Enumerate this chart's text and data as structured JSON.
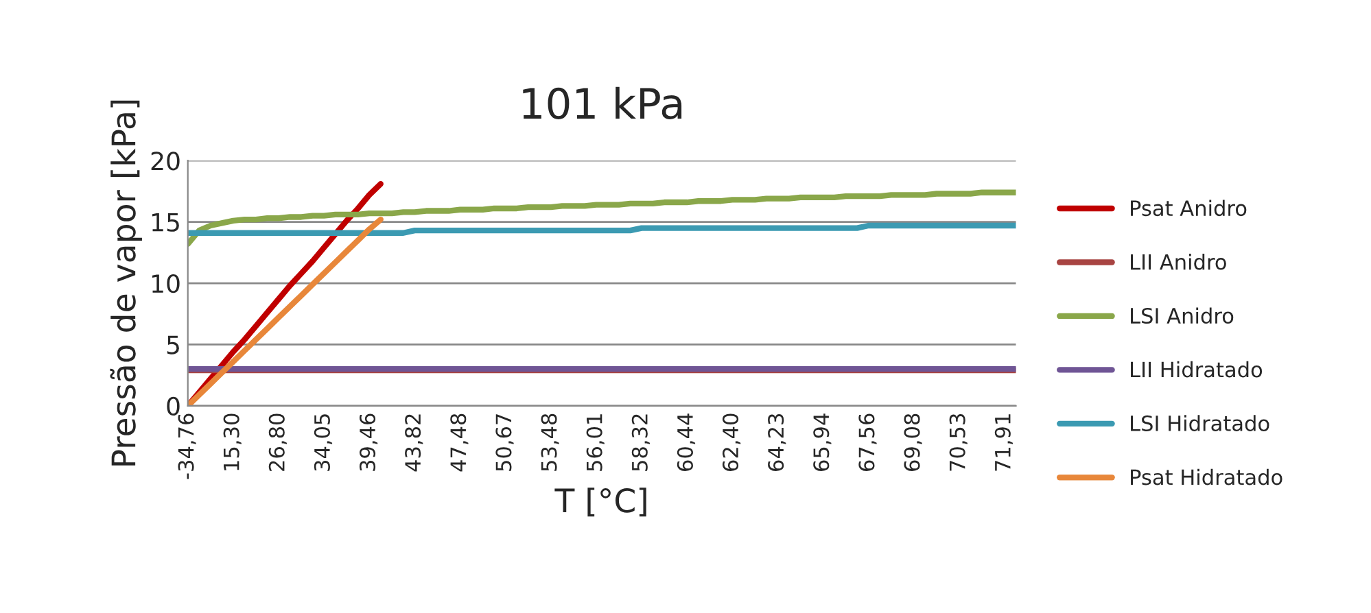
{
  "chart_data": {
    "type": "line",
    "title": "101 kPa",
    "xlabel": "T [°C]",
    "ylabel": "Pressão de vapor [kPa]",
    "categories": [
      "-34,76",
      null,
      null,
      null,
      "15,30",
      null,
      null,
      null,
      "26,80",
      null,
      null,
      null,
      "34,05",
      null,
      null,
      null,
      "39,46",
      null,
      null,
      null,
      "43,82",
      null,
      null,
      null,
      "47,48",
      null,
      null,
      null,
      "50,67",
      null,
      null,
      null,
      "53,48",
      null,
      null,
      null,
      "56,01",
      null,
      null,
      null,
      "58,32",
      null,
      null,
      null,
      "60,44",
      null,
      null,
      null,
      "62,40",
      null,
      null,
      null,
      "64,23",
      null,
      null,
      null,
      "65,94",
      null,
      null,
      null,
      "67,56",
      null,
      null,
      null,
      "69,08",
      null,
      null,
      null,
      "70,53",
      null,
      null,
      null,
      "71,91",
      null
    ],
    "series": [
      {
        "name": "Psat Anidro",
        "color": "#c00000",
        "values": [
          0,
          1.1,
          2.2,
          3.3,
          4.4,
          5.4,
          6.5,
          7.6,
          8.7,
          9.8,
          10.8,
          11.8,
          12.9,
          14.0,
          15.1,
          16.1,
          17.2,
          18.1,
          null,
          null,
          null,
          null,
          null,
          null,
          null,
          null,
          null,
          null,
          null,
          null,
          null,
          null,
          null,
          null,
          null,
          null,
          null,
          null,
          null,
          null,
          null,
          null,
          null,
          null,
          null,
          null,
          null,
          null,
          null,
          null,
          null,
          null,
          null,
          null,
          null,
          null,
          null,
          null,
          null,
          null,
          null,
          null,
          null,
          null,
          null,
          null,
          null,
          null,
          null,
          null,
          null,
          null,
          null,
          null
        ]
      },
      {
        "name": "LII Anidro",
        "color": "#a84442",
        "values": [
          2.9,
          2.9,
          2.9,
          2.9,
          2.9,
          2.9,
          2.9,
          2.9,
          2.9,
          2.9,
          2.9,
          2.9,
          2.9,
          2.9,
          2.9,
          2.9,
          2.9,
          2.9,
          2.9,
          2.9,
          2.9,
          2.9,
          2.9,
          2.9,
          2.9,
          2.9,
          2.9,
          2.9,
          2.9,
          2.9,
          2.9,
          2.9,
          2.9,
          2.9,
          2.9,
          2.9,
          2.9,
          2.9,
          2.9,
          2.9,
          2.9,
          2.9,
          2.9,
          2.9,
          2.9,
          2.9,
          2.9,
          2.9,
          2.9,
          2.9,
          2.9,
          2.9,
          2.9,
          2.9,
          2.9,
          2.9,
          2.9,
          2.9,
          2.9,
          2.9,
          2.9,
          2.9,
          2.9,
          2.9,
          2.9,
          2.9,
          2.9,
          2.9,
          2.9,
          2.9,
          2.9,
          2.9,
          2.9,
          2.9
        ]
      },
      {
        "name": "LSI Anidro",
        "color": "#8aa74a",
        "values": [
          13.2,
          14.3,
          14.7,
          14.9,
          15.1,
          15.2,
          15.2,
          15.3,
          15.3,
          15.4,
          15.4,
          15.5,
          15.5,
          15.6,
          15.6,
          15.6,
          15.7,
          15.7,
          15.7,
          15.8,
          15.8,
          15.9,
          15.9,
          15.9,
          16.0,
          16.0,
          16.0,
          16.1,
          16.1,
          16.1,
          16.2,
          16.2,
          16.2,
          16.3,
          16.3,
          16.3,
          16.4,
          16.4,
          16.4,
          16.5,
          16.5,
          16.5,
          16.6,
          16.6,
          16.6,
          16.7,
          16.7,
          16.7,
          16.8,
          16.8,
          16.8,
          16.9,
          16.9,
          16.9,
          17.0,
          17.0,
          17.0,
          17.0,
          17.1,
          17.1,
          17.1,
          17.1,
          17.2,
          17.2,
          17.2,
          17.2,
          17.3,
          17.3,
          17.3,
          17.3,
          17.4,
          17.4,
          17.4,
          17.4
        ]
      },
      {
        "name": "LII Hidratado",
        "color": "#6f5595",
        "values": [
          3.0,
          3.0,
          3.0,
          3.0,
          3.0,
          3.0,
          3.0,
          3.0,
          3.0,
          3.0,
          3.0,
          3.0,
          3.0,
          3.0,
          3.0,
          3.0,
          3.0,
          3.0,
          3.0,
          3.0,
          3.0,
          3.0,
          3.0,
          3.0,
          3.0,
          3.0,
          3.0,
          3.0,
          3.0,
          3.0,
          3.0,
          3.0,
          3.0,
          3.0,
          3.0,
          3.0,
          3.0,
          3.0,
          3.0,
          3.0,
          3.0,
          3.0,
          3.0,
          3.0,
          3.0,
          3.0,
          3.0,
          3.0,
          3.0,
          3.0,
          3.0,
          3.0,
          3.0,
          3.0,
          3.0,
          3.0,
          3.0,
          3.0,
          3.0,
          3.0,
          3.0,
          3.0,
          3.0,
          3.0,
          3.0,
          3.0,
          3.0,
          3.0,
          3.0,
          3.0,
          3.0,
          3.0,
          3.0,
          3.0
        ]
      },
      {
        "name": "LSI Hidratado",
        "color": "#3b9ab2",
        "values": [
          14.1,
          14.1,
          14.1,
          14.1,
          14.1,
          14.1,
          14.1,
          14.1,
          14.1,
          14.1,
          14.1,
          14.1,
          14.1,
          14.1,
          14.1,
          14.1,
          14.1,
          14.1,
          14.1,
          14.1,
          14.3,
          14.3,
          14.3,
          14.3,
          14.3,
          14.3,
          14.3,
          14.3,
          14.3,
          14.3,
          14.3,
          14.3,
          14.3,
          14.3,
          14.3,
          14.3,
          14.3,
          14.3,
          14.3,
          14.3,
          14.5,
          14.5,
          14.5,
          14.5,
          14.5,
          14.5,
          14.5,
          14.5,
          14.5,
          14.5,
          14.5,
          14.5,
          14.5,
          14.5,
          14.5,
          14.5,
          14.5,
          14.5,
          14.5,
          14.5,
          14.7,
          14.7,
          14.7,
          14.7,
          14.7,
          14.7,
          14.7,
          14.7,
          14.7,
          14.7,
          14.7,
          14.7,
          14.7,
          14.7
        ]
      },
      {
        "name": "Psat Hidratado",
        "color": "#e8873a",
        "values": [
          0,
          0.9,
          1.8,
          2.7,
          3.6,
          4.5,
          5.4,
          6.3,
          7.2,
          8.1,
          9.0,
          9.9,
          10.8,
          11.7,
          12.6,
          13.5,
          14.4,
          15.2,
          null,
          null,
          null,
          null,
          null,
          null,
          null,
          null,
          null,
          null,
          null,
          null,
          null,
          null,
          null,
          null,
          null,
          null,
          null,
          null,
          null,
          null,
          null,
          null,
          null,
          null,
          null,
          null,
          null,
          null,
          null,
          null,
          null,
          null,
          null,
          null,
          null,
          null,
          null,
          null,
          null,
          null,
          null,
          null,
          null,
          null,
          null,
          null,
          null,
          null,
          null,
          null,
          null,
          null,
          null,
          null
        ]
      }
    ],
    "ylim": [
      0,
      20
    ],
    "yticks": [
      0,
      5,
      10,
      15,
      20
    ],
    "grid": "y",
    "legend": "right",
    "marker": "none",
    "line_style": "solid"
  }
}
